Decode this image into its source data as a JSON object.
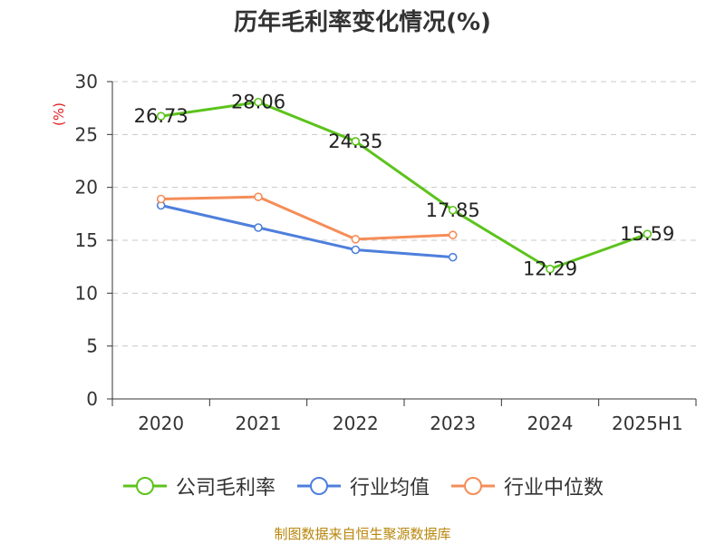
{
  "chart_data": {
    "type": "line",
    "title": "历年毛利率变化情况(%)",
    "ylabel": "(%)",
    "xlabel": "",
    "categories": [
      "2020",
      "2021",
      "2022",
      "2023",
      "2024",
      "2025H1"
    ],
    "ylim": [
      0,
      30
    ],
    "yticks": [
      0,
      5,
      10,
      15,
      20,
      25,
      30
    ],
    "grid": "horizontal dashed",
    "legend_position": "bottom",
    "series": [
      {
        "name": "公司毛利率",
        "color": "#5cc31c",
        "values": [
          26.73,
          28.06,
          24.35,
          17.85,
          12.29,
          15.59
        ],
        "labels": true
      },
      {
        "name": "行业均值",
        "color": "#4e7fdc",
        "values": [
          18.3,
          16.2,
          14.1,
          13.4,
          null,
          null
        ],
        "labels": false
      },
      {
        "name": "行业中位数",
        "color": "#f58d58",
        "values": [
          18.9,
          19.1,
          15.1,
          15.5,
          null,
          null
        ],
        "labels": false
      }
    ]
  },
  "footer": {
    "source": "制图数据来自恒生聚源数据库"
  }
}
